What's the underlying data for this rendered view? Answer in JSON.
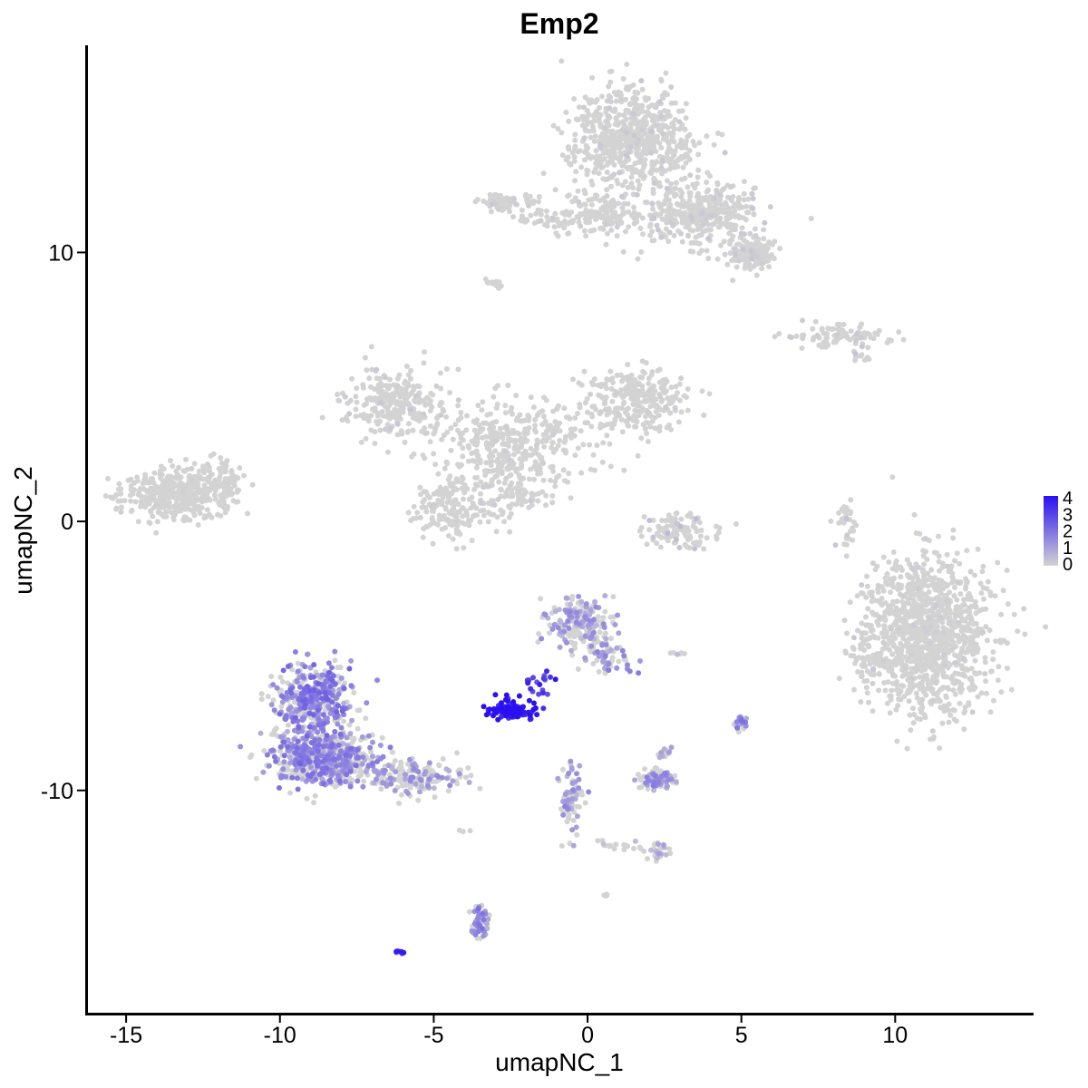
{
  "chart_data": {
    "type": "scatter",
    "title": "Emp2",
    "xlabel": "umapNC_1",
    "ylabel": "umapNC_2",
    "xlim": [
      -16.3,
      14.5
    ],
    "ylim": [
      -18.3,
      17.7
    ],
    "x_ticks": [
      -15,
      -10,
      -5,
      0,
      5,
      10
    ],
    "x_tick_labels": [
      "-15",
      "-10",
      "-5",
      "0",
      "5",
      "10"
    ],
    "y_ticks": [
      -10,
      0,
      10
    ],
    "y_tick_labels": [
      "-10",
      "0",
      "10"
    ],
    "grid": false,
    "legend": {
      "placement": "right",
      "type": "colorbar",
      "labels": [
        "4",
        "3",
        "2",
        "1",
        "0"
      ],
      "min": 0,
      "max": 4,
      "low_color": "#d3d3d3",
      "high_color": "#2a10f0"
    },
    "clusters": [
      {
        "name": "",
        "cx": 1.5,
        "cy": 14.2,
        "rx": 2.0,
        "ry": 1.8,
        "n": 650,
        "expr": 0.05
      },
      {
        "name": "",
        "cx": 3.7,
        "cy": 11.4,
        "rx": 2.0,
        "ry": 1.2,
        "n": 380,
        "expr": 0.05
      },
      {
        "name": "",
        "cx": 5.4,
        "cy": 9.9,
        "rx": 0.7,
        "ry": 0.6,
        "n": 160,
        "expr": 0.05
      },
      {
        "name": "",
        "cx": 0.4,
        "cy": 11.4,
        "rx": 1.6,
        "ry": 0.8,
        "n": 160,
        "expr": 0.05
      },
      {
        "name": "",
        "cx": -2.8,
        "cy": 11.9,
        "rx": 0.9,
        "ry": 0.4,
        "n": 70,
        "expr": 0.05
      },
      {
        "name": "",
        "cx": -1.5,
        "cy": 11.3,
        "rx": 0.9,
        "ry": 0.3,
        "n": 25,
        "expr": 0.05
      },
      {
        "name": "",
        "cx": -3.0,
        "cy": 8.8,
        "rx": 0.3,
        "ry": 0.2,
        "n": 15,
        "expr": 0.05
      },
      {
        "name": "",
        "cx": 8.2,
        "cy": 6.9,
        "rx": 1.6,
        "ry": 0.4,
        "n": 90,
        "expr": 0.05
      },
      {
        "name": "",
        "cx": 8.9,
        "cy": 6.1,
        "rx": 0.3,
        "ry": 0.4,
        "n": 10,
        "expr": 0.1
      },
      {
        "name": "",
        "cx": -6.2,
        "cy": 4.4,
        "rx": 1.6,
        "ry": 1.2,
        "n": 260,
        "expr": 0.05
      },
      {
        "name": "",
        "cx": -2.4,
        "cy": 3.0,
        "rx": 2.7,
        "ry": 1.5,
        "n": 320,
        "expr": 0.03
      },
      {
        "name": "",
        "cx": 1.6,
        "cy": 4.5,
        "rx": 1.8,
        "ry": 1.3,
        "n": 280,
        "expr": 0.03
      },
      {
        "name": "",
        "cx": -4.4,
        "cy": 0.5,
        "rx": 1.4,
        "ry": 1.2,
        "n": 170,
        "expr": 0.03
      },
      {
        "name": "",
        "cx": -2.7,
        "cy": 1.8,
        "rx": 1.1,
        "ry": 1.6,
        "n": 120,
        "expr": 0.03
      },
      {
        "name": "",
        "cx": -2.0,
        "cy": 0.9,
        "rx": 0.9,
        "ry": 0.5,
        "n": 30,
        "expr": 0.05
      },
      {
        "name": "",
        "cx": -13.3,
        "cy": 1.0,
        "rx": 1.8,
        "ry": 0.9,
        "n": 430,
        "expr": 0.02
      },
      {
        "name": "",
        "cx": -11.8,
        "cy": 1.6,
        "rx": 0.6,
        "ry": 0.9,
        "n": 60,
        "expr": 0.02
      },
      {
        "name": "",
        "cx": 3.0,
        "cy": -0.4,
        "rx": 1.2,
        "ry": 0.6,
        "n": 110,
        "expr": 0.1
      },
      {
        "name": "",
        "cx": 8.4,
        "cy": 0.0,
        "rx": 0.3,
        "ry": 1.0,
        "n": 35,
        "expr": 0.1
      },
      {
        "name": "",
        "cx": 11.1,
        "cy": -4.2,
        "rx": 2.0,
        "ry": 2.9,
        "n": 1200,
        "expr": 0.03
      },
      {
        "name": "",
        "cx": 9.2,
        "cy": -5.0,
        "rx": 0.6,
        "ry": 1.2,
        "n": 60,
        "expr": 0.05
      },
      {
        "name": "",
        "cx": -8.9,
        "cy": -6.7,
        "rx": 1.3,
        "ry": 1.4,
        "n": 420,
        "expr": 0.45
      },
      {
        "name": "",
        "cx": -8.6,
        "cy": -8.8,
        "rx": 1.8,
        "ry": 1.0,
        "n": 520,
        "expr": 0.4
      },
      {
        "name": "",
        "cx": -5.8,
        "cy": -9.5,
        "rx": 1.8,
        "ry": 0.6,
        "n": 180,
        "expr": 0.3
      },
      {
        "name": "",
        "cx": -0.3,
        "cy": -3.8,
        "rx": 1.0,
        "ry": 0.9,
        "n": 200,
        "expr": 0.3
      },
      {
        "name": "",
        "cx": 0.7,
        "cy": -5.1,
        "rx": 0.8,
        "ry": 0.6,
        "n": 60,
        "expr": 0.35
      },
      {
        "name": "",
        "cx": -2.5,
        "cy": -7.0,
        "rx": 0.65,
        "ry": 0.35,
        "n": 130,
        "expr": 0.95
      },
      {
        "name": "",
        "cx": -1.6,
        "cy": -6.0,
        "rx": 0.5,
        "ry": 0.6,
        "n": 20,
        "expr": 0.8
      },
      {
        "name": "",
        "cx": 2.3,
        "cy": -9.6,
        "rx": 0.6,
        "ry": 0.35,
        "n": 90,
        "expr": 0.35
      },
      {
        "name": "",
        "cx": 2.5,
        "cy": -8.6,
        "rx": 0.2,
        "ry": 0.3,
        "n": 15,
        "expr": 0.3
      },
      {
        "name": "",
        "cx": -0.5,
        "cy": -10.5,
        "rx": 0.4,
        "ry": 1.3,
        "n": 70,
        "expr": 0.35
      },
      {
        "name": "",
        "cx": 2.2,
        "cy": -12.3,
        "rx": 0.4,
        "ry": 0.3,
        "n": 30,
        "expr": 0.25
      },
      {
        "name": "",
        "cx": 1.0,
        "cy": -12.0,
        "rx": 0.8,
        "ry": 0.3,
        "n": 15,
        "expr": 0.1
      },
      {
        "name": "",
        "cx": -3.5,
        "cy": -14.9,
        "rx": 0.3,
        "ry": 0.7,
        "n": 60,
        "expr": 0.4
      },
      {
        "name": "",
        "cx": -6.1,
        "cy": -16.0,
        "rx": 0.15,
        "ry": 0.08,
        "n": 8,
        "expr": 0.85
      },
      {
        "name": "",
        "cx": 5.0,
        "cy": -7.5,
        "rx": 0.2,
        "ry": 0.3,
        "n": 20,
        "expr": 0.4
      },
      {
        "name": "",
        "cx": 2.8,
        "cy": -4.9,
        "rx": 0.3,
        "ry": 0.1,
        "n": 6,
        "expr": 0.1
      },
      {
        "name": "",
        "cx": -4.1,
        "cy": -11.5,
        "rx": 0.3,
        "ry": 0.1,
        "n": 3,
        "expr": 0.05
      },
      {
        "name": "",
        "cx": 0.6,
        "cy": -13.9,
        "rx": 0.1,
        "ry": 0.1,
        "n": 4,
        "expr": 0.05
      }
    ]
  }
}
